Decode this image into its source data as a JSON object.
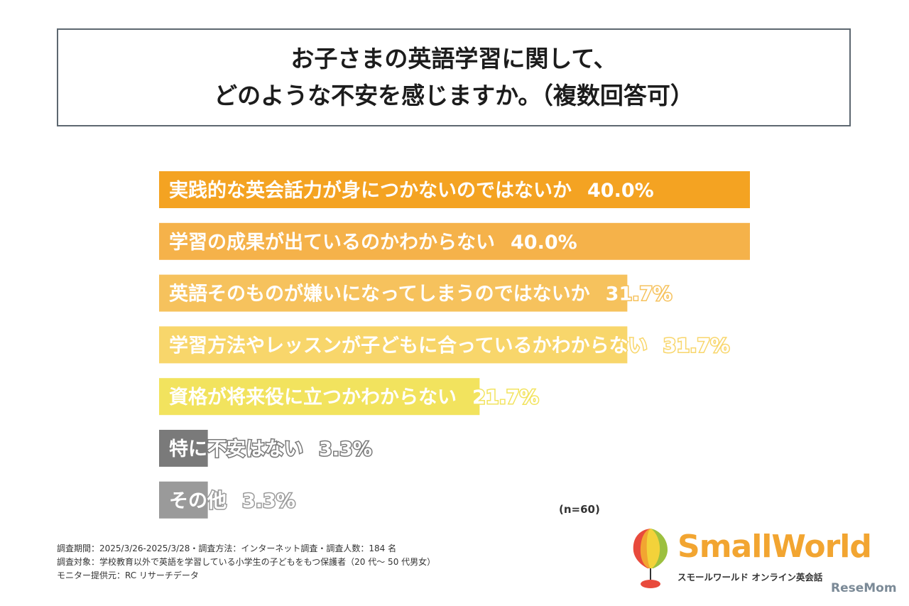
{
  "title": {
    "line1": "お子さまの英語学習に関して、",
    "line2": "どのような不安を感じますか。（複数回答可）"
  },
  "chart_data": {
    "type": "bar",
    "orientation": "horizontal",
    "categories": [
      "実践的な英会話力が身につかないのではないか",
      "学習の成果が出ているのかわからない",
      "英語そのものが嫌いになってしまうのではないか",
      "学習方法やレッスンが子どもに合っているかわからない",
      "資格が将来役に立つかわからない",
      "特に不安はない",
      "その他"
    ],
    "values": [
      40.0,
      40.0,
      31.7,
      31.7,
      21.7,
      3.3,
      3.3
    ],
    "value_labels": [
      "40.0%",
      "40.0%",
      "31.7%",
      "31.7%",
      "21.7%",
      "3.3%",
      "3.3%"
    ],
    "colors": [
      "#f4a322",
      "#f5b24a",
      "#f6c25d",
      "#f8d66b",
      "#f2e35e",
      "#7a7a7a",
      "#9a9a9a"
    ],
    "xlim": [
      0,
      40
    ],
    "grid": false,
    "legend": "none"
  },
  "note": "(n=60)",
  "footer": {
    "line1": "調査期間：2025/3/26-2025/3/28・調査方法：インターネット調査・調査人数：184 名",
    "line2": "調査対象：学校教育以外で英語を学習している小学生の子どもをもつ保護者（20 代〜 50 代男女）",
    "line3": "モニター提供元：RC リサーチデータ"
  },
  "logo": {
    "name": "SmallWorld",
    "subtitle": "スモールワールド オンライン英会話",
    "colors": [
      "#e84a3c",
      "#f2a531",
      "#f3d23a",
      "#9cc03f",
      "#4aa3d8"
    ]
  },
  "watermark": "ReseMom"
}
